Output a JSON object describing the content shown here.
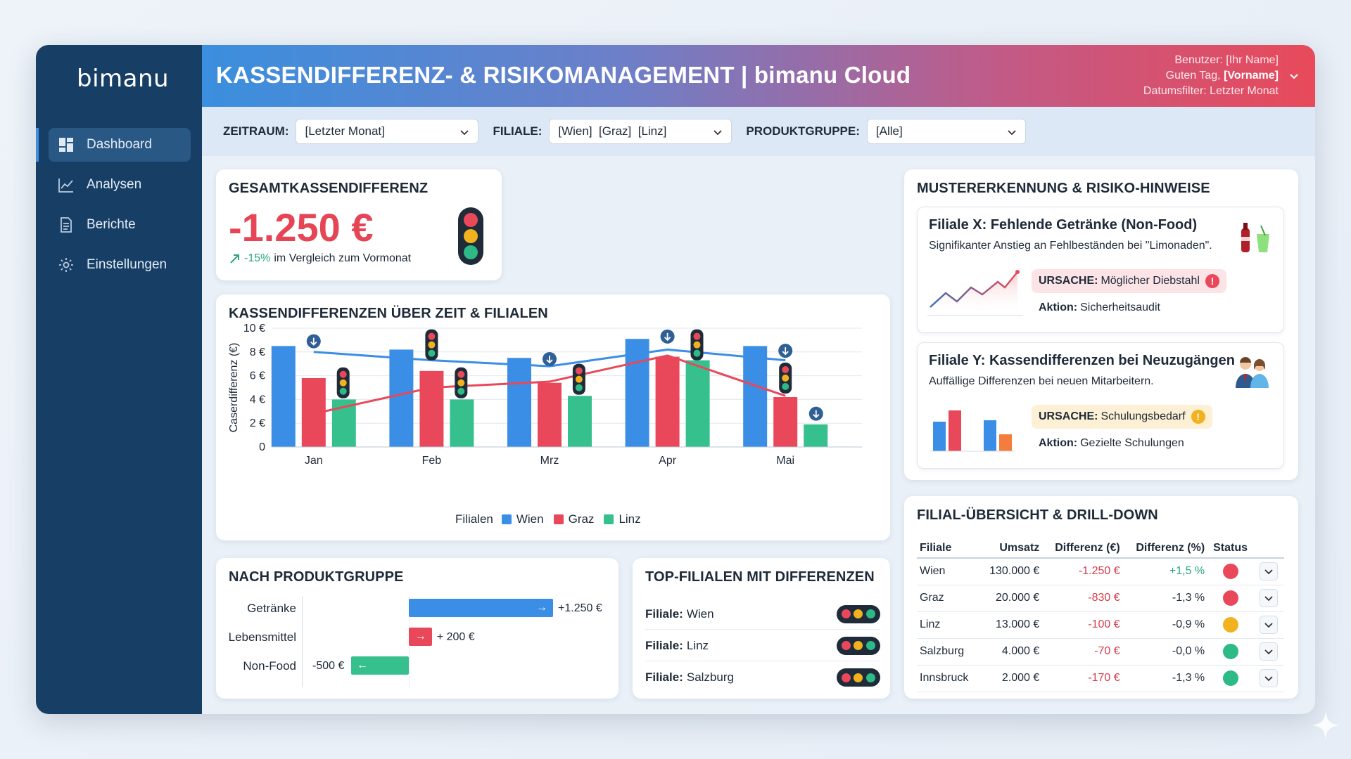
{
  "app": {
    "logo": "bimanu",
    "title": "KASSENDIFFERENZ- & RISIKOMANAGEMENT | bimanu Cloud"
  },
  "user": {
    "line1": "Benutzer: [Ihr Name]",
    "greeting_prefix": "Guten Tag, ",
    "greeting_name": "[Vorname]",
    "line3": "Datumsfilter: Letzter Monat"
  },
  "sidebar": {
    "items": [
      {
        "label": "Dashboard",
        "icon": "dashboard-icon"
      },
      {
        "label": "Analysen",
        "icon": "line-chart-icon"
      },
      {
        "label": "Berichte",
        "icon": "document-icon"
      },
      {
        "label": "Einstellungen",
        "icon": "gear-icon"
      }
    ]
  },
  "filters": {
    "zeitraum": {
      "label": "ZEITRAUM:",
      "value": "[Letzter Monat]"
    },
    "filiale": {
      "label": "FILIALE:",
      "value": "[Wien]  [Graz]  [Linz]"
    },
    "produktgruppe": {
      "label": "PRODUKTGRUPPE:",
      "value": "[Alle]"
    }
  },
  "kpi": {
    "title": "GESAMTKASSENDIFFERENZ",
    "value": "-1.250 €",
    "change_pct": "-15%",
    "change_text": "im Vergleich zum Vormonat"
  },
  "chart_data": {
    "type": "bar",
    "title": "KASSENDIFFERENZEN ÜBER ZEIT & FILIALEN",
    "ylabel": "Caserdifferenz (€)",
    "xlabel": "",
    "categories": [
      "Jan",
      "Feb",
      "Mrz",
      "Apr",
      "Mai"
    ],
    "ylim": [
      0,
      10
    ],
    "yticks": [
      "0",
      "2 €",
      "4 €",
      "6 €",
      "8 €",
      "10 €"
    ],
    "legend_title": "Filialen",
    "series": [
      {
        "name": "Wien",
        "color": "#3a8ee6",
        "values": [
          8.5,
          8.2,
          7.5,
          9.1,
          8.5
        ]
      },
      {
        "name": "Graz",
        "color": "#e8485a",
        "values": [
          5.8,
          6.4,
          5.4,
          7.6,
          4.2
        ]
      },
      {
        "name": "Linz",
        "color": "#35c08e",
        "values": [
          4.0,
          4.0,
          4.3,
          7.3,
          1.9
        ]
      }
    ],
    "lines": [
      {
        "color": "#3a8ee6",
        "values": [
          8.0,
          7.3,
          6.8,
          8.2,
          7.3
        ]
      },
      {
        "color": "#e8485a",
        "values": [
          2.8,
          5.0,
          5.5,
          7.7,
          4.3
        ]
      }
    ]
  },
  "produkt": {
    "title": "NACH PRODUKTGRUPPE",
    "rows": [
      {
        "label": "Getränke",
        "value_text": "+1.250 €",
        "value": 1250,
        "color": "#3a8ee6"
      },
      {
        "label": "Lebensmittel",
        "value_text": "+ 200 €",
        "value": 200,
        "color": "#e8485a"
      },
      {
        "label": "Non-Food",
        "value_text": "-500 €",
        "value": -500,
        "color": "#35c08e"
      }
    ]
  },
  "top": {
    "title": "TOP-FILIALEN MIT DIFFERENZEN",
    "prefix": "Filiale:",
    "rows": [
      {
        "name": "Wien"
      },
      {
        "name": "Linz"
      },
      {
        "name": "Salzburg"
      }
    ]
  },
  "muster": {
    "title": "MUSTERERKENNUNG & RISIKO-HINWEISE",
    "cards": [
      {
        "title": "Filiale X: Fehlende Getränke (Non-Food)",
        "desc": "Signifikanter Anstieg an Fehlbeständen bei \"Limonaden\".",
        "cause_label": "URSACHE:",
        "cause": "Möglicher Diebstahl",
        "cause_icon": "!",
        "action_label": "Aktion:",
        "action": "Sicherheitsaudit"
      },
      {
        "title": "Filiale Y: Kassendifferenzen bei Neuzugängen",
        "desc": "Auffällige Differenzen bei neuen Mitarbeitern.",
        "cause_label": "URSACHE:",
        "cause": "Schulungsbedarf",
        "cause_icon": "!",
        "action_label": "Aktion:",
        "action": "Gezielte Schulungen"
      }
    ]
  },
  "table": {
    "title": "FILIAL-ÜBERSICHT & DRILL-DOWN",
    "headers": [
      "Filiale",
      "Umsatz",
      "Differenz (€)",
      "Differenz (%)",
      "Status"
    ],
    "rows": [
      {
        "filiale": "Wien",
        "umsatz": "130.000 €",
        "diff": "-1.250 €",
        "pct": "+1,5 %",
        "pct_pos": true,
        "status": "#e8485a"
      },
      {
        "filiale": "Graz",
        "umsatz": "20.000 €",
        "diff": "-830 €",
        "pct": "-1,3 %",
        "pct_pos": false,
        "status": "#e8485a"
      },
      {
        "filiale": "Linz",
        "umsatz": "13.000 €",
        "diff": "-100 €",
        "pct": "-0,9 %",
        "pct_pos": false,
        "status": "#f2b21f"
      },
      {
        "filiale": "Salzburg",
        "umsatz": "4.000 €",
        "diff": "-70 €",
        "pct": "-0,0 %",
        "pct_pos": false,
        "status": "#2dba87"
      },
      {
        "filiale": "Innsbruck",
        "umsatz": "2.000 €",
        "diff": "-170 €",
        "pct": "-1,3 %",
        "pct_pos": false,
        "status": "#2dba87"
      }
    ]
  }
}
